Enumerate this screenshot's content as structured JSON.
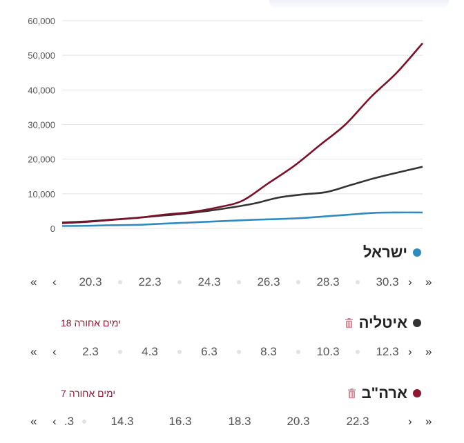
{
  "chart_data": {
    "type": "line",
    "ylim": [
      0,
      60000
    ],
    "yticks": [
      "0",
      "10,000",
      "20,000",
      "30,000",
      "40,000",
      "50,000",
      "60,000"
    ],
    "grid": true,
    "series": [
      {
        "name": "ישראל",
        "color": "#2e8bc0",
        "values": [
          700,
          750,
          900,
          1000,
          1300,
          1600,
          1900,
          2200,
          2500,
          2700,
          3000,
          3500,
          4000,
          4500,
          4600,
          4600
        ]
      },
      {
        "name": "איטליה",
        "color": "#333333",
        "values": [
          1700,
          2000,
          2500,
          3000,
          3600,
          4200,
          5000,
          6000,
          7200,
          8900,
          9800,
          10500,
          12500,
          14500,
          16200,
          17800
        ]
      },
      {
        "name": "ארה\"ב",
        "color": "#7b1128",
        "values": [
          1500,
          1900,
          2500,
          3100,
          4000,
          4700,
          6000,
          8000,
          13000,
          18000,
          24000,
          30000,
          38000,
          45000,
          53500
        ]
      }
    ]
  },
  "sections": [
    {
      "title": "ישראל",
      "dot_color": "#2e8bc0",
      "days_label": "",
      "dates": [
        "20.3",
        "22.3",
        "24.3",
        "26.3",
        "28.3",
        "30.3"
      ]
    },
    {
      "title": "איטליה",
      "dot_color": "#333333",
      "days_label": "18 ימים אחורה",
      "dates": [
        "2.3",
        "4.3",
        "6.3",
        "8.3",
        "10.3",
        "12.3"
      ]
    },
    {
      "title": "ארה\"ב",
      "dot_color": "#8e1630",
      "days_label": "7 ימים אחורה",
      "partial_date": ".3",
      "dates": [
        "14.3",
        "16.3",
        "18.3",
        "20.3",
        "22.3"
      ]
    }
  ],
  "icons": {
    "first": "«",
    "prev": "‹",
    "next": "›",
    "last": "»",
    "trash": "trash-icon"
  }
}
